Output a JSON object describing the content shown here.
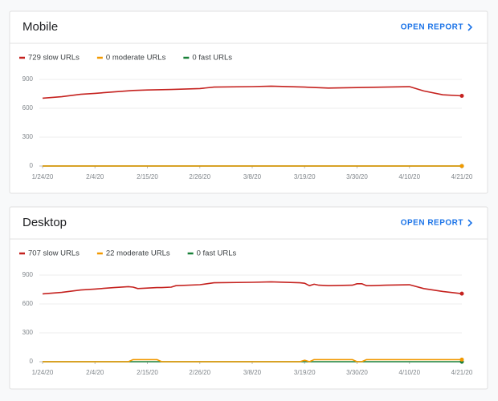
{
  "chart_data": [
    {
      "type": "line",
      "title": "Mobile",
      "link": "OPEN REPORT",
      "x": [
        "1/24/20",
        "1/28/20",
        "2/1/20",
        "2/4/20",
        "2/8/20",
        "2/12/20",
        "2/15/20",
        "2/20/20",
        "2/26/20",
        "2/29/20",
        "3/8/20",
        "3/12/20",
        "3/19/20",
        "3/24/20",
        "3/30/20",
        "4/5/20",
        "4/10/20",
        "4/13/20",
        "4/17/20",
        "4/21/20"
      ],
      "xlim": [
        "1/24/20",
        "4/21/20"
      ],
      "xticks": [
        "1/24/20",
        "2/4/20",
        "2/15/20",
        "2/26/20",
        "3/8/20",
        "3/19/20",
        "3/30/20",
        "4/10/20",
        "4/21/20"
      ],
      "ylim": [
        0,
        900
      ],
      "yticks": [
        0,
        300,
        600,
        900
      ],
      "grid": true,
      "series": [
        {
          "name": "729 slow URLs",
          "color": "#c5221f",
          "values": [
            705,
            720,
            745,
            755,
            770,
            785,
            790,
            795,
            805,
            820,
            825,
            830,
            820,
            810,
            815,
            820,
            825,
            780,
            740,
            729
          ]
        },
        {
          "name": "0 moderate URLs",
          "color": "#f29900",
          "values": [
            0,
            0,
            0,
            0,
            0,
            0,
            0,
            0,
            0,
            0,
            0,
            0,
            0,
            0,
            0,
            0,
            0,
            0,
            0,
            0
          ]
        },
        {
          "name": "0 fast URLs",
          "color": "#188038",
          "values": [
            0,
            0,
            0,
            0,
            0,
            0,
            0,
            0,
            0,
            0,
            0,
            0,
            0,
            0,
            0,
            0,
            0,
            0,
            0,
            0
          ]
        }
      ]
    },
    {
      "type": "line",
      "title": "Desktop",
      "link": "OPEN REPORT",
      "x": [
        "1/24/20",
        "1/28/20",
        "2/1/20",
        "2/4/20",
        "2/8/20",
        "2/11/20",
        "2/12/20",
        "2/13/20",
        "2/17/20",
        "2/18/20",
        "2/20/20",
        "2/21/20",
        "2/26/20",
        "2/29/20",
        "3/8/20",
        "3/12/20",
        "3/18/20",
        "3/19/20",
        "3/20/20",
        "3/21/20",
        "3/22/20",
        "3/24/20",
        "3/29/20",
        "3/30/20",
        "3/31/20",
        "4/1/20",
        "4/2/20",
        "4/5/20",
        "4/10/20",
        "4/13/20",
        "4/17/20",
        "4/21/20"
      ],
      "xlim": [
        "1/24/20",
        "4/21/20"
      ],
      "xticks": [
        "1/24/20",
        "2/4/20",
        "2/15/20",
        "2/26/20",
        "3/8/20",
        "3/19/20",
        "3/30/20",
        "4/10/20",
        "4/21/20"
      ],
      "ylim": [
        0,
        900
      ],
      "yticks": [
        0,
        300,
        600,
        900
      ],
      "grid": true,
      "series": [
        {
          "name": "707 slow URLs",
          "color": "#c5221f",
          "values": [
            705,
            720,
            745,
            755,
            770,
            780,
            775,
            760,
            770,
            770,
            775,
            790,
            800,
            820,
            825,
            830,
            820,
            815,
            790,
            805,
            795,
            790,
            795,
            810,
            810,
            790,
            790,
            795,
            800,
            760,
            730,
            707
          ]
        },
        {
          "name": "22 moderate URLs",
          "color": "#f29900",
          "values": [
            0,
            0,
            0,
            0,
            0,
            0,
            22,
            22,
            22,
            0,
            0,
            0,
            0,
            0,
            0,
            0,
            0,
            15,
            0,
            22,
            22,
            22,
            22,
            0,
            0,
            22,
            22,
            22,
            22,
            22,
            22,
            22
          ]
        },
        {
          "name": "0 fast URLs",
          "color": "#188038",
          "values": [
            0,
            0,
            0,
            0,
            0,
            0,
            0,
            0,
            0,
            0,
            0,
            0,
            0,
            0,
            0,
            0,
            0,
            0,
            0,
            0,
            0,
            0,
            0,
            0,
            0,
            0,
            0,
            0,
            0,
            0,
            0,
            0
          ]
        }
      ]
    }
  ]
}
